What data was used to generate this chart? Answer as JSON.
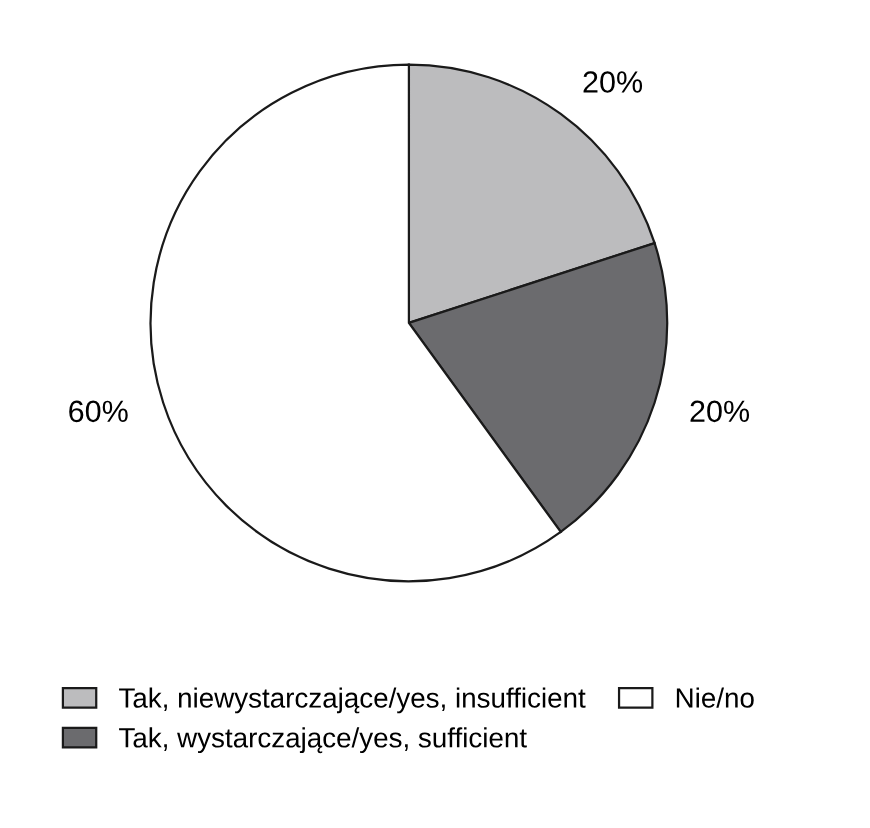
{
  "chart_data": {
    "type": "pie",
    "categories": [
      "Tak, niewystarczające/yes, insufficient",
      "Tak, wystarczające/yes, sufficient",
      "Nie/no"
    ],
    "values": [
      20,
      20,
      60
    ],
    "colors": [
      "#bcbcbe",
      "#6b6b6e",
      "#ffffff"
    ],
    "value_labels": [
      "20%",
      "20%",
      "60%"
    ],
    "legend": "bottom"
  }
}
